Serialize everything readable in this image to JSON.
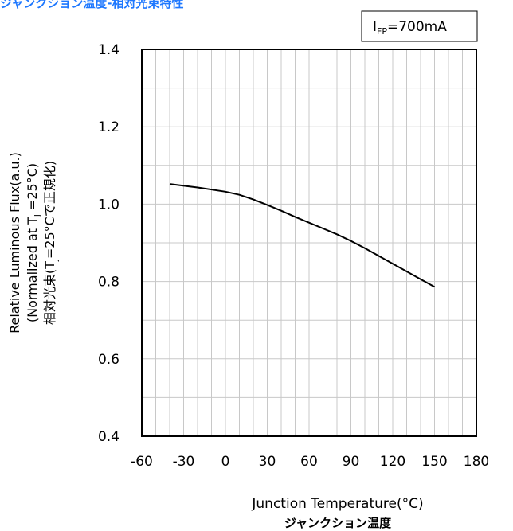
{
  "chart_data": {
    "type": "line",
    "title": "ジャンクション温度-相対光束特性",
    "condition": {
      "main": "I",
      "sub": "FP",
      "rest": "=700mA"
    },
    "xlabel": "Junction Temperature(°C)",
    "xlabel_ja": "ジャンクション温度",
    "ylabel": {
      "line1": "Relative Luminous Flux(a.u.)",
      "line2_pre": "(Normalized at T",
      "line2_sub": "J",
      "line2_post": " =25°C)",
      "line3_pre": "相対光束(T",
      "line3_sub": "J",
      "line3_post": "=25°Cで正規化)"
    },
    "xlim": [
      -60,
      180
    ],
    "ylim": [
      0.4,
      1.4
    ],
    "x_ticks": [
      "-60",
      "-30",
      "0",
      "30",
      "60",
      "90",
      "120",
      "150",
      "180"
    ],
    "y_ticks": [
      "0.4",
      "0.6",
      "0.8",
      "1.0",
      "1.2",
      "1.4"
    ],
    "x_tick_values": [
      -60,
      -30,
      0,
      30,
      60,
      90,
      120,
      150,
      180
    ],
    "y_tick_values": [
      0.4,
      0.6,
      0.8,
      1.0,
      1.2,
      1.4
    ],
    "grid": true,
    "series": [
      {
        "x": [
          -40,
          -20,
          0,
          10,
          20,
          30,
          40,
          50,
          60,
          70,
          80,
          90,
          100,
          110,
          120,
          130,
          140,
          150
        ],
        "y": [
          1.052,
          1.043,
          1.032,
          1.024,
          1.012,
          0.998,
          0.983,
          0.967,
          0.952,
          0.937,
          0.922,
          0.905,
          0.886,
          0.866,
          0.846,
          0.826,
          0.806,
          0.786
        ]
      }
    ],
    "colors": {
      "line": "#000000",
      "grid": "#c8c8c8",
      "axes": "#000000",
      "title": "#1e78ff"
    }
  }
}
